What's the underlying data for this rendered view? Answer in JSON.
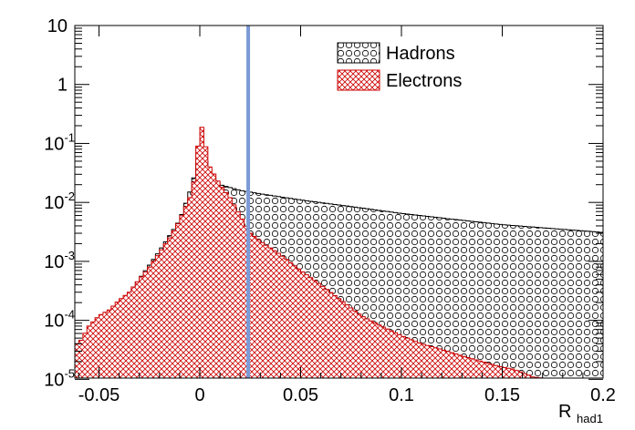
{
  "chart_data": {
    "type": "histogram",
    "title": "",
    "xlabel_main": "R",
    "xlabel_sub": "had1",
    "ylabel": "",
    "xlim": [
      -0.062,
      0.2
    ],
    "ylim": [
      1.05e-05,
      10
    ],
    "y_scale": "log",
    "grid": false,
    "legend_position": "top-right",
    "x_ticks": [
      {
        "value": -0.05,
        "label": "-0.05"
      },
      {
        "value": 0,
        "label": "0"
      },
      {
        "value": 0.05,
        "label": "0.05"
      },
      {
        "value": 0.1,
        "label": "0.1"
      },
      {
        "value": 0.15,
        "label": "0.15"
      },
      {
        "value": 0.2,
        "label": "0.2"
      }
    ],
    "y_ticks": [
      {
        "value": 10,
        "base": "10",
        "exp": ""
      },
      {
        "value": 1,
        "base": "1",
        "exp": ""
      },
      {
        "value": 0.1,
        "base": "10",
        "exp": "-1"
      },
      {
        "value": 0.01,
        "base": "10",
        "exp": "-2"
      },
      {
        "value": 0.001,
        "base": "10",
        "exp": "-3"
      },
      {
        "value": 0.0001,
        "base": "10",
        "exp": "-4"
      },
      {
        "value": 1e-05,
        "base": "10",
        "exp": "-5"
      }
    ],
    "cut_line": {
      "x": 0.024,
      "color": "#7b9bd6"
    },
    "series": [
      {
        "name": "Hadrons",
        "color": "#000000",
        "fill_pattern": "circles",
        "points": [
          [
            -0.06,
            4e-05
          ],
          [
            -0.05,
            6e-05
          ],
          [
            -0.04,
            0.00015
          ],
          [
            -0.03,
            0.0005
          ],
          [
            -0.02,
            0.0015
          ],
          [
            -0.01,
            0.005
          ],
          [
            -0.005,
            0.015
          ],
          [
            0,
            0.06
          ],
          [
            0.002,
            0.065
          ],
          [
            0.005,
            0.03
          ],
          [
            0.01,
            0.02
          ],
          [
            0.02,
            0.016
          ],
          [
            0.03,
            0.014
          ],
          [
            0.05,
            0.011
          ],
          [
            0.075,
            0.0085
          ],
          [
            0.1,
            0.0065
          ],
          [
            0.125,
            0.0052
          ],
          [
            0.15,
            0.0042
          ],
          [
            0.175,
            0.0036
          ],
          [
            0.2,
            0.0031
          ]
        ]
      },
      {
        "name": "Electrons",
        "color": "#cc0000",
        "fill_pattern": "crosshatch",
        "points": [
          [
            -0.06,
            4e-05
          ],
          [
            -0.055,
            8e-05
          ],
          [
            -0.05,
            0.00012
          ],
          [
            -0.045,
            0.00015
          ],
          [
            -0.04,
            0.00022
          ],
          [
            -0.035,
            0.0003
          ],
          [
            -0.03,
            0.0005
          ],
          [
            -0.025,
            0.0008
          ],
          [
            -0.02,
            0.0014
          ],
          [
            -0.015,
            0.0025
          ],
          [
            -0.01,
            0.005
          ],
          [
            -0.005,
            0.012
          ],
          [
            -0.002,
            0.03
          ],
          [
            0,
            0.27
          ],
          [
            0.002,
            0.13
          ],
          [
            0.005,
            0.04
          ],
          [
            0.01,
            0.02
          ],
          [
            0.015,
            0.012
          ],
          [
            0.02,
            0.006
          ],
          [
            0.025,
            0.003
          ],
          [
            0.03,
            0.0022
          ],
          [
            0.04,
            0.0013
          ],
          [
            0.05,
            0.0007
          ],
          [
            0.06,
            0.0004
          ],
          [
            0.07,
            0.00022
          ],
          [
            0.08,
            0.00012
          ],
          [
            0.09,
            8e-05
          ],
          [
            0.1,
            5.5e-05
          ],
          [
            0.11,
            4e-05
          ],
          [
            0.12,
            3.2e-05
          ],
          [
            0.13,
            2.5e-05
          ],
          [
            0.14,
            2e-05
          ],
          [
            0.15,
            1.6e-05
          ],
          [
            0.155,
            1.5e-05
          ],
          [
            0.16,
            1.3e-05
          ],
          [
            0.165,
            1.1e-05
          ],
          [
            0.17,
            1.05e-05
          ]
        ]
      }
    ]
  }
}
